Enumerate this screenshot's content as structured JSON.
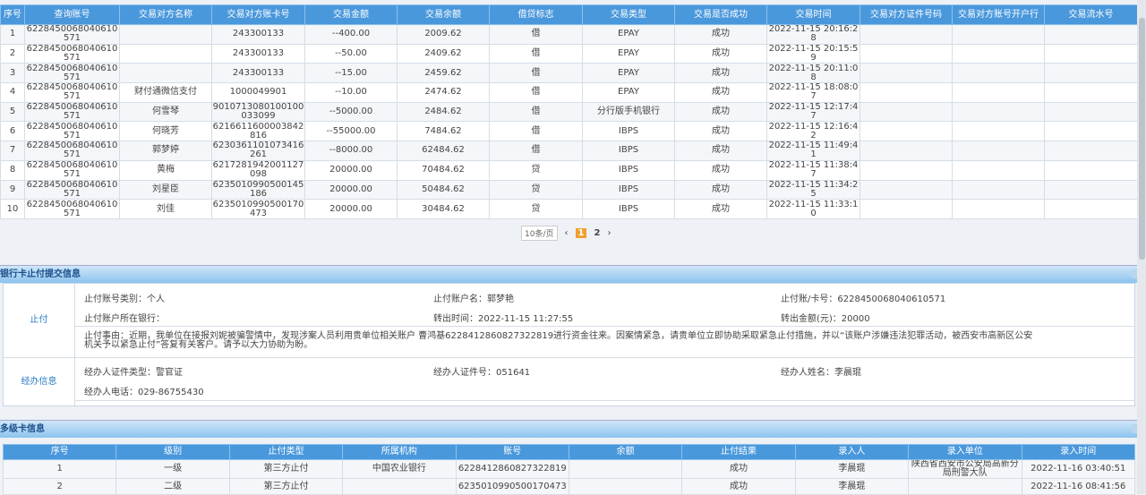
{
  "tx": {
    "headers": [
      "序号",
      "查询账号",
      "交易对方名称",
      "交易对方账卡号",
      "交易金额",
      "交易余额",
      "借贷标志",
      "交易类型",
      "交易是否成功",
      "交易时间",
      "交易对方证件号码",
      "交易对方账号开户行",
      "交易流水号"
    ],
    "rows": [
      [
        "1",
        "6228450068040610571",
        "",
        "243300133",
        "--400.00",
        "2009.62",
        "借",
        "EPAY",
        "成功",
        "2022-11-15 20:16:28",
        "",
        "",
        ""
      ],
      [
        "2",
        "6228450068040610571",
        "",
        "243300133",
        "--50.00",
        "2409.62",
        "借",
        "EPAY",
        "成功",
        "2022-11-15 20:15:59",
        "",
        "",
        ""
      ],
      [
        "3",
        "6228450068040610571",
        "",
        "243300133",
        "--15.00",
        "2459.62",
        "借",
        "EPAY",
        "成功",
        "2022-11-15 20:11:08",
        "",
        "",
        ""
      ],
      [
        "4",
        "6228450068040610571",
        "财付通微信支付",
        "1000049901",
        "--10.00",
        "2474.62",
        "借",
        "EPAY",
        "成功",
        "2022-11-15 18:08:07",
        "",
        "",
        ""
      ],
      [
        "5",
        "6228450068040610571",
        "何雪琴",
        "9010713080100100033099",
        "--5000.00",
        "2484.62",
        "借",
        "分行版手机银行",
        "成功",
        "2022-11-15 12:17:47",
        "",
        "",
        ""
      ],
      [
        "6",
        "6228450068040610571",
        "何晓芳",
        "6216611600003842816",
        "--55000.00",
        "7484.62",
        "借",
        "IBPS",
        "成功",
        "2022-11-15 12:16:42",
        "",
        "",
        ""
      ],
      [
        "7",
        "6228450068040610571",
        "郭梦婷",
        "6230361101073416261",
        "--8000.00",
        "62484.62",
        "借",
        "IBPS",
        "成功",
        "2022-11-15 11:49:41",
        "",
        "",
        ""
      ],
      [
        "8",
        "6228450068040610571",
        "黄梅",
        "6217281942001127098",
        "20000.00",
        "70484.62",
        "贷",
        "IBPS",
        "成功",
        "2022-11-15 11:38:47",
        "",
        "",
        ""
      ],
      [
        "9",
        "6228450068040610571",
        "刘星臣",
        "6235010990500145186",
        "20000.00",
        "50484.62",
        "贷",
        "IBPS",
        "成功",
        "2022-11-15 11:34:25",
        "",
        "",
        ""
      ],
      [
        "10",
        "6228450068040610571",
        "刘佳",
        "6235010990500170473",
        "20000.00",
        "30484.62",
        "贷",
        "IBPS",
        "成功",
        "2022-11-15 11:33:10",
        "",
        "",
        ""
      ]
    ]
  },
  "pager": {
    "page_size": "10条/页",
    "current": "1",
    "next_page": "2",
    "prev": "‹",
    "next": "›"
  },
  "stop": {
    "title": "银行卡止付提交信息",
    "label_stop": "止付",
    "label_handler": "经办信息",
    "acct_type": "止付账号类别：个人",
    "acct_name": "止付账户名：郭梦艳",
    "card_no": "止付账/卡号：6228450068040610571",
    "bank": "止付账户所在银行：",
    "out_time": "转出时间：2022-11-15 11:27:55",
    "out_amount": "转出金额(元)：20000",
    "reason": "止付事由：近期，我单位在接报刘妮被骗警情中，发现涉案人员利用贵单位相关账户 曹鸿基6228412860827322819进行资金往来。因案情紧急，请贵单位立即协助采取紧急止付措施，并以“该账户涉嫌违法犯罪活动，被西安市高新区公安机关予以紧急止付”答复有关客户。请予以大力协助为盼。",
    "id_type": "经办人证件类型：警官证",
    "id_no": "经办人证件号：051641",
    "handler_name": "经办人姓名：李晨琨",
    "phone": "经办人电话：029-86755430"
  },
  "multi": {
    "title": "多级卡信息",
    "headers": [
      "序号",
      "级别",
      "止付类型",
      "所属机构",
      "账号",
      "余额",
      "止付结果",
      "录入人",
      "录入单位",
      "录入时间"
    ],
    "rows": [
      [
        "1",
        "一级",
        "第三方止付",
        "中国农业银行",
        "6228412860827322819",
        "",
        "成功",
        "李晨琨",
        "陕西省西安市公安局高新分局刑警大队",
        "2022-11-16 03:40:51"
      ],
      [
        "2",
        "二级",
        "第三方止付",
        "",
        "6235010990500170473",
        "",
        "成功",
        "李晨琨",
        "",
        "2022-11-16 08:41:56"
      ]
    ]
  }
}
